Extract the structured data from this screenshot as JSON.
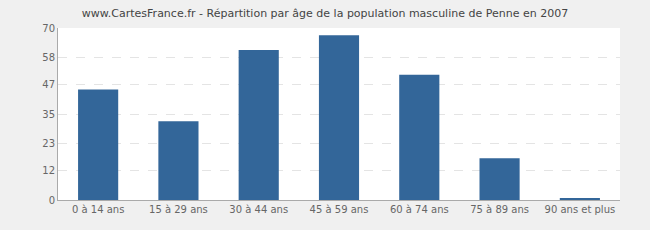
{
  "chart_data": {
    "type": "bar",
    "title": "www.CartesFrance.fr - Répartition par âge de la population masculine de Penne en 2007",
    "categories": [
      "0 à 14 ans",
      "15 à 29 ans",
      "30 à 44 ans",
      "45 à 59 ans",
      "60 à 74 ans",
      "75 à 89 ans",
      "90 ans et plus"
    ],
    "values": [
      45,
      32,
      61,
      67,
      51,
      17,
      0.5
    ],
    "color": "#336699",
    "ylim": [
      0,
      70
    ],
    "yticks": [
      0,
      12,
      23,
      35,
      47,
      58,
      70
    ],
    "grid": true
  }
}
